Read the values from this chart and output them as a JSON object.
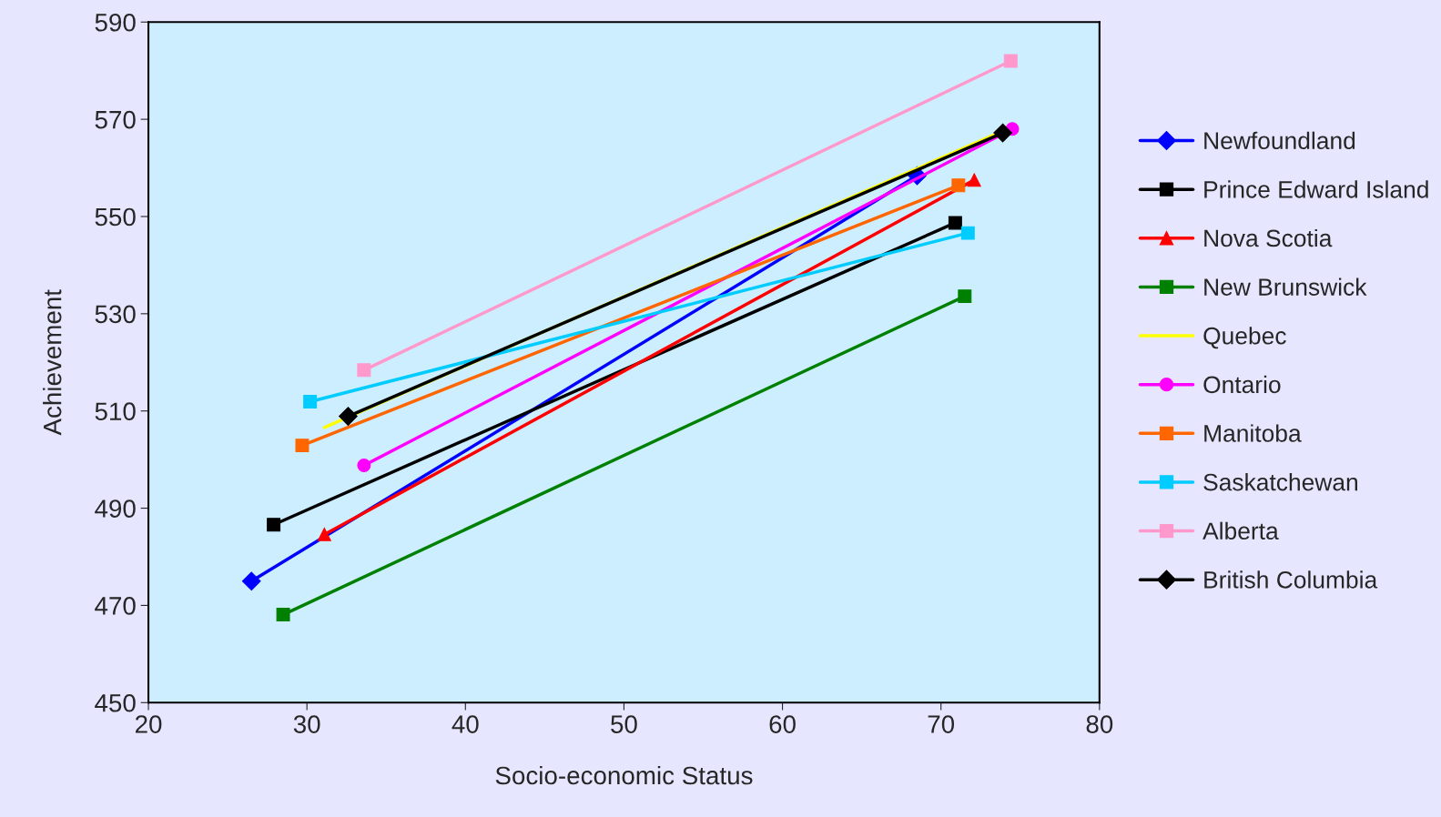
{
  "chart_data": {
    "type": "line",
    "xlabel": "Socio-economic Status",
    "ylabel": "Achievement",
    "xlim": [
      20,
      80
    ],
    "xticks": [
      20,
      30,
      40,
      50,
      60,
      70,
      80
    ],
    "ylim": [
      450,
      590
    ],
    "yticks": [
      450,
      470,
      490,
      510,
      530,
      550,
      570,
      590
    ],
    "grid": false,
    "legend": "right",
    "series": [
      {
        "name": "Newfoundland",
        "color": "#0000ff",
        "marker": "diamond",
        "x": [
          26.5,
          68.5
        ],
        "values": [
          475,
          558.4
        ]
      },
      {
        "name": "Prince Edward Island",
        "color": "#000000",
        "marker": "square",
        "x": [
          27.9,
          70.9
        ],
        "values": [
          486.6,
          548.7
        ]
      },
      {
        "name": "Nova Scotia",
        "color": "#ff0000",
        "marker": "triangle",
        "x": [
          31.1,
          72.1
        ],
        "values": [
          484.6,
          557.5
        ]
      },
      {
        "name": "New Brunswick",
        "color": "#008000",
        "marker": "square",
        "x": [
          28.5,
          71.5
        ],
        "values": [
          468.1,
          533.6
        ]
      },
      {
        "name": "Quebec",
        "color": "#ffff00",
        "marker": "none",
        "x": [
          31.1,
          73.5
        ],
        "values": [
          506.6,
          567
        ]
      },
      {
        "name": "Ontario",
        "color": "#ff00ff",
        "marker": "circle",
        "x": [
          33.6,
          74.5
        ],
        "values": [
          498.8,
          568
        ]
      },
      {
        "name": "Manitoba",
        "color": "#ff6600",
        "marker": "square",
        "x": [
          29.7,
          71.1
        ],
        "values": [
          502.9,
          556.4
        ]
      },
      {
        "name": "Saskatchewan",
        "color": "#00ccff",
        "marker": "square",
        "x": [
          30.2,
          71.7
        ],
        "values": [
          511.9,
          546.6
        ]
      },
      {
        "name": "Alberta",
        "color": "#ff99cc",
        "marker": "square",
        "x": [
          33.6,
          74.4
        ],
        "values": [
          518.4,
          582
        ]
      },
      {
        "name": "British Columbia",
        "color": "#000000",
        "marker": "diamond",
        "x": [
          32.6,
          73.9
        ],
        "values": [
          508.9,
          567.2
        ]
      }
    ]
  }
}
